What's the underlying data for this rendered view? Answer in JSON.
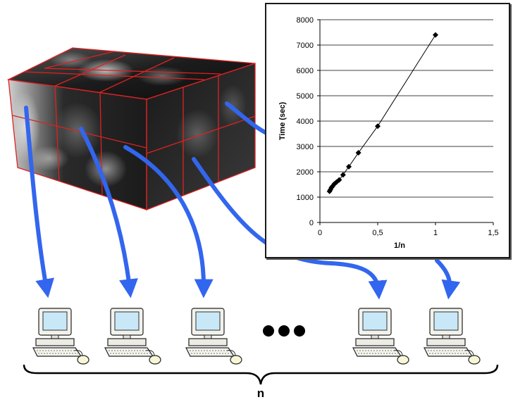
{
  "diagram": {
    "group_label": "n",
    "computers": [
      {
        "name": "computer-1"
      },
      {
        "name": "computer-2"
      },
      {
        "name": "computer-3"
      },
      {
        "name": "computer-n-minus-1"
      },
      {
        "name": "computer-n"
      }
    ],
    "colors": {
      "arrow": "#3366ee",
      "grid_lines": "#dd2222",
      "cube_dark": "#111111",
      "cube_light": "#d8d8d8"
    }
  },
  "chart_data": {
    "type": "scatter",
    "xlabel": "1/n",
    "ylabel": "Time (sec)",
    "xlim": [
      0,
      1.5
    ],
    "ylim": [
      0,
      8000
    ],
    "x_ticks": [
      "0",
      "0,5",
      "1",
      "1,5"
    ],
    "y_ticks": [
      "0",
      "1000",
      "2000",
      "3000",
      "4000",
      "5000",
      "6000",
      "7000",
      "8000"
    ],
    "grid": "horizontal",
    "series": [
      {
        "marker": "diamond",
        "line": true,
        "points": [
          {
            "x": 0.083,
            "y": 1230
          },
          {
            "x": 0.091,
            "y": 1300
          },
          {
            "x": 0.1,
            "y": 1380
          },
          {
            "x": 0.111,
            "y": 1440
          },
          {
            "x": 0.125,
            "y": 1520
          },
          {
            "x": 0.143,
            "y": 1590
          },
          {
            "x": 0.167,
            "y": 1680
          },
          {
            "x": 0.2,
            "y": 1880
          },
          {
            "x": 0.25,
            "y": 2200
          },
          {
            "x": 0.333,
            "y": 2750
          },
          {
            "x": 0.5,
            "y": 3800
          },
          {
            "x": 1.0,
            "y": 7400
          }
        ]
      }
    ]
  }
}
